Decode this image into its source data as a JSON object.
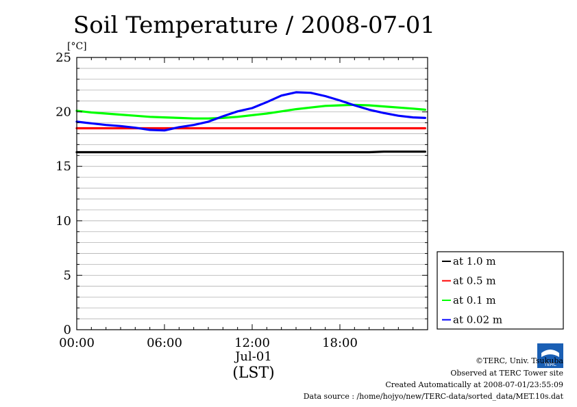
{
  "chart_data": {
    "type": "line",
    "title": "Soil Temperature / 2008-07-01",
    "ylabel": "[°C]",
    "xlabel": "(LST)",
    "x_date_label": "Jul-01",
    "ylim": [
      0,
      25
    ],
    "yticks": [
      0,
      5,
      10,
      15,
      20,
      25
    ],
    "xlim": [
      "00:00",
      "24:00"
    ],
    "xticks": [
      "00:00",
      "06:00",
      "12:00",
      "18:00"
    ],
    "x": [
      "00:00",
      "01:00",
      "02:00",
      "03:00",
      "04:00",
      "05:00",
      "06:00",
      "07:00",
      "08:00",
      "09:00",
      "10:00",
      "11:00",
      "12:00",
      "13:00",
      "14:00",
      "15:00",
      "16:00",
      "17:00",
      "18:00",
      "19:00",
      "20:00",
      "21:00",
      "22:00",
      "23:00",
      "23:50"
    ],
    "series": [
      {
        "name": "at 1.0 m",
        "color": "#000000",
        "values": [
          16.3,
          16.3,
          16.3,
          16.3,
          16.3,
          16.3,
          16.3,
          16.3,
          16.3,
          16.3,
          16.3,
          16.3,
          16.3,
          16.3,
          16.3,
          16.3,
          16.3,
          16.3,
          16.3,
          16.3,
          16.3,
          16.35,
          16.35,
          16.35,
          16.35
        ]
      },
      {
        "name": "at 0.5 m",
        "color": "#ff0000",
        "values": [
          18.5,
          18.5,
          18.5,
          18.5,
          18.5,
          18.5,
          18.5,
          18.5,
          18.5,
          18.5,
          18.5,
          18.5,
          18.5,
          18.5,
          18.5,
          18.5,
          18.5,
          18.5,
          18.5,
          18.5,
          18.5,
          18.5,
          18.5,
          18.5,
          18.5
        ]
      },
      {
        "name": "at 0.1 m",
        "color": "#00ff00",
        "values": [
          20.1,
          19.95,
          19.85,
          19.75,
          19.65,
          19.55,
          19.5,
          19.45,
          19.4,
          19.4,
          19.45,
          19.55,
          19.7,
          19.85,
          20.05,
          20.25,
          20.4,
          20.55,
          20.6,
          20.65,
          20.6,
          20.5,
          20.4,
          20.3,
          20.2
        ]
      },
      {
        "name": "at 0.02 m",
        "color": "#0000ff",
        "values": [
          19.1,
          18.95,
          18.8,
          18.7,
          18.55,
          18.35,
          18.3,
          18.6,
          18.8,
          19.1,
          19.6,
          20.05,
          20.35,
          20.9,
          21.5,
          21.8,
          21.75,
          21.45,
          21.05,
          20.6,
          20.2,
          19.9,
          19.65,
          19.5,
          19.45
        ]
      }
    ],
    "legend_position": "bottom-right, outside plot",
    "grid": true
  },
  "credits": {
    "copyright": "©TERC, Univ. Tsukuba",
    "site": "Observed at TERC Tower site",
    "created": "Created Automatically at 2008-07-01/23:55:09",
    "source": "Data source : /home/hojyo/new/TERC-data/sorted_data/MET.10s.dat",
    "logo_text": "TERC"
  }
}
